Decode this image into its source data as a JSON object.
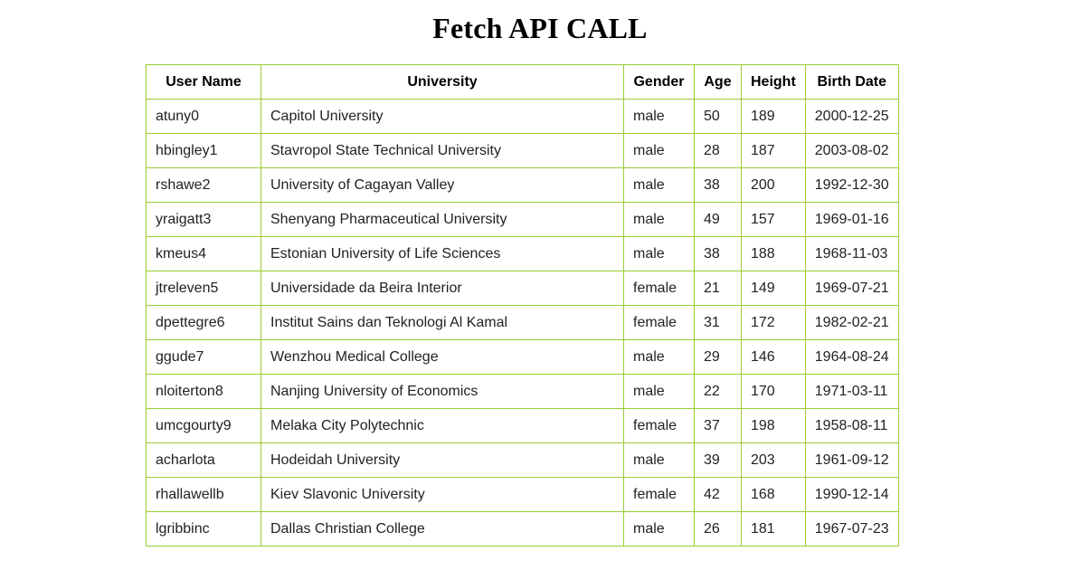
{
  "page": {
    "title": "Fetch API CALL"
  },
  "table": {
    "headers": {
      "username": "User Name",
      "university": "University",
      "gender": "Gender",
      "age": "Age",
      "height": "Height",
      "birthdate": "Birth Date"
    },
    "rows": [
      {
        "username": "atuny0",
        "university": "Capitol University",
        "gender": "male",
        "age": "50",
        "height": "189",
        "birthdate": "2000-12-25"
      },
      {
        "username": "hbingley1",
        "university": "Stavropol State Technical University",
        "gender": "male",
        "age": "28",
        "height": "187",
        "birthdate": "2003-08-02"
      },
      {
        "username": "rshawe2",
        "university": "University of Cagayan Valley",
        "gender": "male",
        "age": "38",
        "height": "200",
        "birthdate": "1992-12-30"
      },
      {
        "username": "yraigatt3",
        "university": "Shenyang Pharmaceutical University",
        "gender": "male",
        "age": "49",
        "height": "157",
        "birthdate": "1969-01-16"
      },
      {
        "username": "kmeus4",
        "university": "Estonian University of Life Sciences",
        "gender": "male",
        "age": "38",
        "height": "188",
        "birthdate": "1968-11-03"
      },
      {
        "username": "jtreleven5",
        "university": "Universidade da Beira Interior",
        "gender": "female",
        "age": "21",
        "height": "149",
        "birthdate": "1969-07-21"
      },
      {
        "username": "dpettegre6",
        "university": "Institut Sains dan Teknologi Al Kamal",
        "gender": "female",
        "age": "31",
        "height": "172",
        "birthdate": "1982-02-21"
      },
      {
        "username": "ggude7",
        "university": "Wenzhou Medical College",
        "gender": "male",
        "age": "29",
        "height": "146",
        "birthdate": "1964-08-24"
      },
      {
        "username": "nloiterton8",
        "university": "Nanjing University of Economics",
        "gender": "male",
        "age": "22",
        "height": "170",
        "birthdate": "1971-03-11"
      },
      {
        "username": "umcgourty9",
        "university": "Melaka City Polytechnic",
        "gender": "female",
        "age": "37",
        "height": "198",
        "birthdate": "1958-08-11"
      },
      {
        "username": "acharlota",
        "university": "Hodeidah University",
        "gender": "male",
        "age": "39",
        "height": "203",
        "birthdate": "1961-09-12"
      },
      {
        "username": "rhallawellb",
        "university": "Kiev Slavonic University",
        "gender": "female",
        "age": "42",
        "height": "168",
        "birthdate": "1990-12-14"
      },
      {
        "username": "lgribbinc",
        "university": "Dallas Christian College",
        "gender": "male",
        "age": "26",
        "height": "181",
        "birthdate": "1967-07-23"
      }
    ]
  },
  "colors": {
    "table_border": "#9acd32"
  }
}
